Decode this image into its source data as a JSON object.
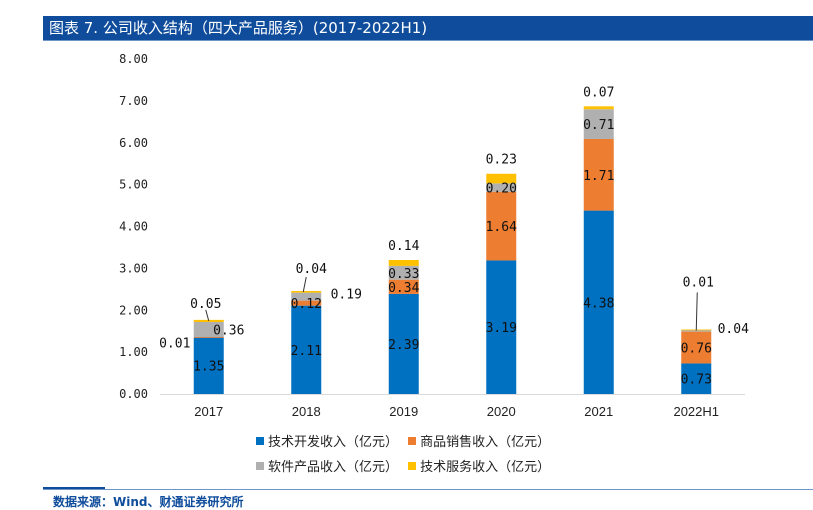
{
  "header": {
    "title": "图表 7.  公司收入结构（四大产品服务）(2017-2022H1)"
  },
  "source": "数据来源：Wind、财通证券研究所",
  "colors": {
    "tech_dev": "#0070c0",
    "goods_sales": "#ed7d31",
    "software": "#b0b0b0",
    "tech_service": "#ffc000",
    "axis": "#d9d9d9",
    "leader": "#333333"
  },
  "chart_data": {
    "type": "bar",
    "stacked": true,
    "title": "公司收入结构（四大产品服务）(2017-2022H1)",
    "xlabel": "",
    "ylabel": "",
    "ylim": [
      0,
      8
    ],
    "yticks": [
      "0.00",
      "1.00",
      "2.00",
      "3.00",
      "4.00",
      "5.00",
      "6.00",
      "7.00",
      "8.00"
    ],
    "grid": false,
    "legend_position": "bottom",
    "categories": [
      "2017",
      "2018",
      "2019",
      "2020",
      "2021",
      "2022H1"
    ],
    "series": [
      {
        "name": "技术开发收入（亿元）",
        "key": "tech_dev",
        "values": [
          1.35,
          2.11,
          2.39,
          3.19,
          4.38,
          0.73
        ],
        "labels": [
          "1.35",
          "2.11",
          "2.39",
          "3.19",
          "4.38",
          "0.73"
        ]
      },
      {
        "name": "商品销售收入（亿元）",
        "key": "goods_sales",
        "values": [
          0.01,
          0.12,
          0.34,
          1.64,
          1.71,
          0.76
        ],
        "labels": [
          "0.01",
          "0.12",
          "0.34",
          "1.64",
          "1.71",
          "0.76"
        ]
      },
      {
        "name": "软件产品收入（亿元）",
        "key": "software",
        "values": [
          0.36,
          0.19,
          0.33,
          0.2,
          0.71,
          0.04
        ],
        "labels": [
          "0.36",
          "0.19",
          "0.33",
          "0.20",
          "0.71",
          "0.04"
        ]
      },
      {
        "name": "技术服务收入（亿元）",
        "key": "tech_service",
        "values": [
          0.05,
          0.04,
          0.14,
          0.23,
          0.07,
          0.01
        ],
        "labels": [
          "0.05",
          "0.04",
          "0.14",
          "0.23",
          "0.07",
          "0.01"
        ]
      }
    ]
  }
}
